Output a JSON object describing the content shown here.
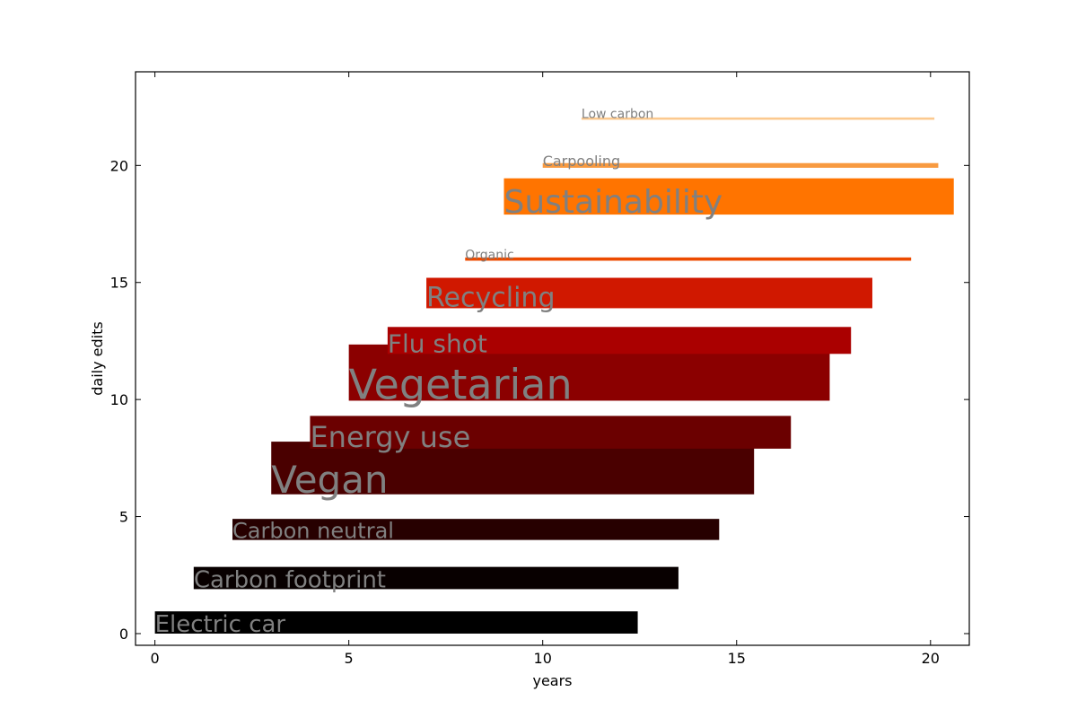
{
  "chart_data": {
    "type": "bar",
    "orientation": "horizontal-spans",
    "xlabel": "years",
    "ylabel": "daily edits",
    "xlim": [
      -0.5,
      21
    ],
    "ylim": [
      -0.5,
      24
    ],
    "xticks": [
      0,
      5,
      10,
      15,
      20
    ],
    "yticks": [
      0,
      5,
      10,
      15,
      20
    ],
    "grid": false,
    "legend": "none",
    "bars": [
      {
        "label": "Electric car",
        "x_start": 0,
        "x_end": 12.45,
        "y_bottom": 0,
        "y_top": 0.95,
        "color": "#000000",
        "label_size": 26
      },
      {
        "label": "Carbon footprint",
        "x_start": 1,
        "x_end": 13.5,
        "y_bottom": 1.9,
        "y_top": 2.85,
        "color": "#080000",
        "label_size": 26
      },
      {
        "label": "Carbon neutral",
        "x_start": 2,
        "x_end": 14.55,
        "y_bottom": 4.0,
        "y_top": 4.9,
        "color": "#270000",
        "label_size": 24
      },
      {
        "label": "Vegan",
        "x_start": 3,
        "x_end": 15.45,
        "y_bottom": 5.95,
        "y_top": 8.2,
        "color": "#4a0000",
        "label_size": 42
      },
      {
        "label": "Energy use",
        "x_start": 4,
        "x_end": 16.4,
        "y_bottom": 7.9,
        "y_top": 9.3,
        "color": "#6b0000",
        "label_size": 32
      },
      {
        "label": "Vegetarian",
        "x_start": 5,
        "x_end": 17.4,
        "y_bottom": 9.95,
        "y_top": 12.35,
        "color": "#8b0000",
        "label_size": 46
      },
      {
        "label": "Flu shot",
        "x_start": 6,
        "x_end": 17.95,
        "y_bottom": 11.95,
        "y_top": 13.1,
        "color": "#aa0000",
        "label_size": 28
      },
      {
        "label": "Recycling",
        "x_start": 7,
        "x_end": 18.5,
        "y_bottom": 13.9,
        "y_top": 15.2,
        "color": "#d01800",
        "label_size": 30
      },
      {
        "label": "Organic",
        "x_start": 8,
        "x_end": 19.5,
        "y_bottom": 15.93,
        "y_top": 16.07,
        "color": "#ec4a00",
        "label_size": 14
      },
      {
        "label": "Sustainability",
        "x_start": 9,
        "x_end": 20.6,
        "y_bottom": 17.9,
        "y_top": 19.45,
        "color": "#ff7400",
        "label_size": 36
      },
      {
        "label": "Carpooling",
        "x_start": 10,
        "x_end": 20.2,
        "y_bottom": 19.9,
        "y_top": 20.1,
        "color": "#f89a40",
        "label_size": 16
      },
      {
        "label": "Low carbon",
        "x_start": 11,
        "x_end": 20.1,
        "y_bottom": 21.95,
        "y_top": 22.05,
        "color": "#fcc98f",
        "label_size": 14
      }
    ]
  }
}
